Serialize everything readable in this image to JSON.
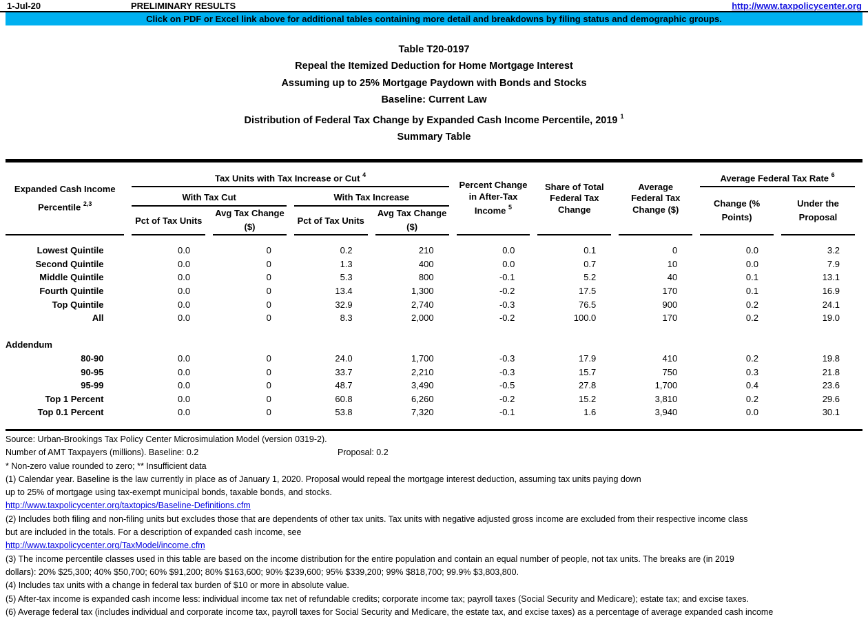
{
  "topbar": {
    "date": "1-Jul-20",
    "preliminary": "PRELIMINARY RESULTS",
    "url": "http://www.taxpolicycenter.org"
  },
  "banner": {
    "text": "Click on PDF or Excel link above for additional tables containing more detail and breakdowns by filing status and demographic groups.",
    "bg_color": "#00B0F0"
  },
  "titles": [
    {
      "text": "Table T20-0197"
    },
    {
      "text": "Repeal the Itemized Deduction for Home Mortgage Interest"
    },
    {
      "text": "Assuming up to 25% Mortgage Paydown with Bonds and Stocks"
    },
    {
      "text": "Baseline: Current Law"
    },
    {
      "text": "Distribution of Federal Tax Change by Expanded Cash Income Percentile, 2019",
      "sup": "1"
    },
    {
      "text": "Summary Table"
    }
  ],
  "table": {
    "stub_header": {
      "line1": "Expanded Cash Income",
      "line2": "Percentile",
      "sup": "2,3"
    },
    "group_increase_cut": {
      "label": "Tax Units with Tax Increase or Cut",
      "sup": "4"
    },
    "group_cut": "With Tax Cut",
    "group_increase": "With Tax Increase",
    "sub_pct_cut": "Pct of Tax Units",
    "sub_avg_cut": {
      "l1": "Avg Tax Change",
      "l2": "($)"
    },
    "sub_pct_inc": "Pct of Tax Units",
    "sub_avg_inc": {
      "l1": "Avg Tax Change",
      "l2": "($)"
    },
    "col_pct_change": {
      "l1": "Percent Change",
      "l2": "in After-Tax",
      "l3": "Income",
      "sup": "5"
    },
    "col_share": {
      "l1": "Share of Total",
      "l2": "Federal Tax",
      "l3": "Change"
    },
    "col_avg_change": {
      "l1": "Average",
      "l2": "Federal Tax",
      "l3": "Change ($)"
    },
    "group_avg_rate": {
      "label": "Average Federal Tax Rate",
      "sup": "6"
    },
    "col_rate_change": {
      "l1": "Change (%",
      "l2": "Points)"
    },
    "col_rate_under": {
      "l1": "Under the",
      "l2": "Proposal"
    },
    "rows": [
      {
        "label": "Lowest Quintile",
        "values": [
          "0.0",
          "0",
          "0.2",
          "210",
          "0.0",
          "0.1",
          "0",
          "0.0",
          "3.2"
        ]
      },
      {
        "label": "Second Quintile",
        "values": [
          "0.0",
          "0",
          "1.3",
          "400",
          "0.0",
          "0.7",
          "10",
          "0.0",
          "7.9"
        ]
      },
      {
        "label": "Middle Quintile",
        "values": [
          "0.0",
          "0",
          "5.3",
          "800",
          "-0.1",
          "5.2",
          "40",
          "0.1",
          "13.1"
        ]
      },
      {
        "label": "Fourth Quintile",
        "values": [
          "0.0",
          "0",
          "13.4",
          "1,300",
          "-0.2",
          "17.5",
          "170",
          "0.1",
          "16.9"
        ]
      },
      {
        "label": "Top Quintile",
        "values": [
          "0.0",
          "0",
          "32.9",
          "2,740",
          "-0.3",
          "76.5",
          "900",
          "0.2",
          "24.1"
        ]
      },
      {
        "label": "All",
        "values": [
          "0.0",
          "0",
          "8.3",
          "2,000",
          "-0.2",
          "100.0",
          "170",
          "0.2",
          "19.0"
        ]
      },
      {
        "type": "blank"
      },
      {
        "type": "section",
        "label": "Addendum"
      },
      {
        "label": "80-90",
        "values": [
          "0.0",
          "0",
          "24.0",
          "1,700",
          "-0.3",
          "17.9",
          "410",
          "0.2",
          "19.8"
        ]
      },
      {
        "label": "90-95",
        "values": [
          "0.0",
          "0",
          "33.7",
          "2,210",
          "-0.3",
          "15.7",
          "750",
          "0.3",
          "21.8"
        ]
      },
      {
        "label": "95-99",
        "values": [
          "0.0",
          "0",
          "48.7",
          "3,490",
          "-0.5",
          "27.8",
          "1,700",
          "0.4",
          "23.6"
        ]
      },
      {
        "label": "Top 1 Percent",
        "values": [
          "0.0",
          "0",
          "60.8",
          "6,260",
          "-0.2",
          "15.2",
          "3,810",
          "0.2",
          "29.6"
        ]
      },
      {
        "label": "Top 0.1 Percent",
        "values": [
          "0.0",
          "0",
          "53.8",
          "7,320",
          "-0.1",
          "1.6",
          "3,940",
          "0.0",
          "30.1"
        ]
      }
    ]
  },
  "footnotes": [
    {
      "text": "Source: Urban-Brookings Tax Policy Center Microsimulation Model (version 0319-2)."
    },
    {
      "parts": [
        "Number of AMT Taxpayers (millions).  Baseline: 0.2",
        "Proposal: 0.2"
      ]
    },
    {
      "text": "* Non-zero value rounded to zero; ** Insufficient data"
    },
    {
      "text": "(1) Calendar year. Baseline is the law currently in place as of January 1, 2020. Proposal would repeal the mortgage interest deduction, assuming tax units paying down"
    },
    {
      "text": "up to 25% of mortgage using tax-exempt municipal bonds, taxable bonds, and stocks."
    },
    {
      "type": "link",
      "text": "http://www.taxpolicycenter.org/taxtopics/Baseline-Definitions.cfm"
    },
    {
      "text": "(2) Includes both filing and non-filing units but excludes those that are dependents of other tax units. Tax units with negative adjusted gross income are excluded from their respective income class"
    },
    {
      "text": "but are included in the totals. For a description of expanded cash income, see"
    },
    {
      "type": "link",
      "text": "http://www.taxpolicycenter.org/TaxModel/income.cfm"
    },
    {
      "text": "(3) The income percentile classes used in this table are based on the income distribution for the entire population and contain an equal number of people, not tax units. The breaks are (in 2019"
    },
    {
      "text": "dollars): 20% $25,300; 40% $50,700; 60% $91,200; 80% $163,600; 90% $239,600; 95% $339,200; 99% $818,700; 99.9% $3,803,800."
    },
    {
      "text": "(4) Includes tax units with a change in federal tax burden of $10 or more in absolute value."
    },
    {
      "text": "(5) After-tax income is expanded cash income less: individual income tax net of refundable credits; corporate income tax; payroll taxes (Social Security and Medicare); estate tax; and excise taxes."
    },
    {
      "text": "(6) Average federal tax (includes individual and corporate income tax, payroll taxes for Social Security and Medicare, the estate tax, and excise taxes) as a percentage of average expanded cash income"
    }
  ]
}
